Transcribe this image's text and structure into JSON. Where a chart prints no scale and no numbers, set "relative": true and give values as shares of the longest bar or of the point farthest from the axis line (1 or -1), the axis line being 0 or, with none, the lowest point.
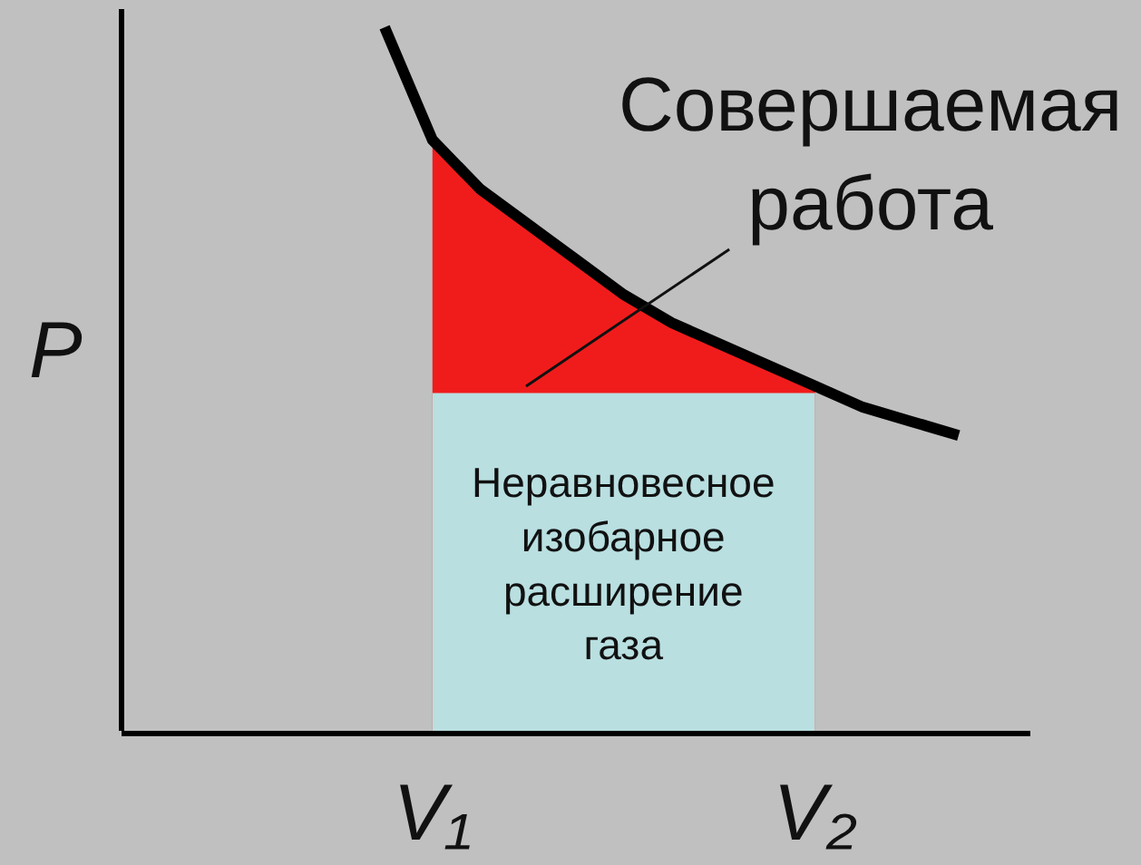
{
  "chart_data": {
    "type": "line",
    "relative": true,
    "ylabel": "P",
    "categories": [
      null,
      null,
      null,
      null,
      null,
      null,
      "V₁",
      null,
      null,
      null,
      null,
      null,
      null,
      null,
      "V₂",
      null,
      null,
      null,
      null
    ],
    "series": [
      {
        "type": "area",
        "color": "#f01c1c",
        "values": [
          null,
          null,
          null,
          null,
          null,
          null,
          0.84,
          0.77,
          0.72,
          0.67,
          0.62,
          0.58,
          0.55,
          0.52,
          0.49,
          null,
          null,
          null,
          null
        ]
      },
      {
        "type": "area",
        "color": "#b9dfe1",
        "values": [
          null,
          null,
          null,
          null,
          null,
          null,
          0.48,
          0.48,
          0.48,
          0.48,
          0.48,
          0.48,
          0.48,
          0.48,
          0.48,
          null,
          null,
          null,
          null
        ]
      },
      {
        "color": "#000000",
        "values": [
          null,
          null,
          null,
          null,
          null,
          1.0,
          0.84,
          0.77,
          0.72,
          0.67,
          0.62,
          0.58,
          0.55,
          0.52,
          0.49,
          0.46,
          0.44,
          0.42,
          null
        ]
      }
    ],
    "annotations": [
      "Совершаемая\nработа",
      "Неравновесное\nизобарное\nрасширение\nгаза"
    ]
  }
}
